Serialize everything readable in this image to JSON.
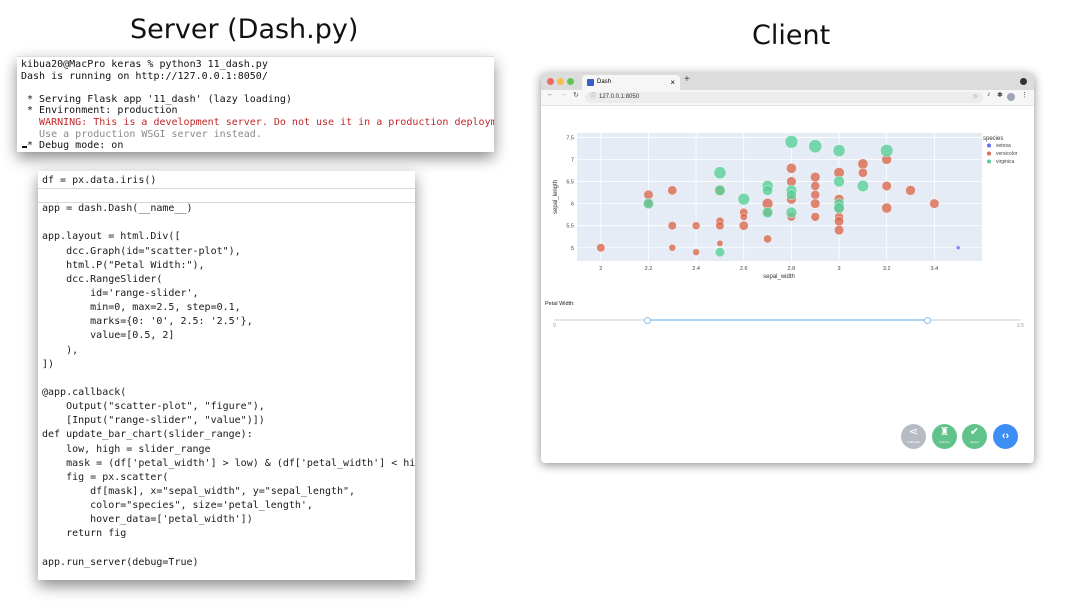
{
  "headings": {
    "server": "Server (Dash.py)",
    "client": "Client"
  },
  "terminal": {
    "lines": [
      {
        "text": "kibua20@MacPro keras % python3 11_dash.py",
        "kind": "normal"
      },
      {
        "text": "Dash is running on http://127.0.0.1:8050/",
        "kind": "normal"
      },
      {
        "text": "",
        "kind": "normal"
      },
      {
        "text": " * Serving Flask app '11_dash' (lazy loading)",
        "kind": "normal"
      },
      {
        "text": " * Environment: production",
        "kind": "normal"
      },
      {
        "text": "   WARNING: This is a development server. Do not use it in a production deployment.",
        "kind": "warn"
      },
      {
        "text": "   Use a production WSGI server instead.",
        "kind": "muted"
      },
      {
        "text": " * Debug mode: on",
        "kind": "normal"
      }
    ]
  },
  "code": {
    "lines": [
      "df = px.data.iris()",
      "",
      "app = dash.Dash(__name__)",
      "",
      "app.layout = html.Div([",
      "    dcc.Graph(id=\"scatter-plot\"),",
      "    html.P(\"Petal Width:\"),",
      "    dcc.RangeSlider(",
      "        id='range-slider',",
      "        min=0, max=2.5, step=0.1,",
      "        marks={0: '0', 2.5: '2.5'},",
      "        value=[0.5, 2]",
      "    ),",
      "])",
      "",
      "@app.callback(",
      "    Output(\"scatter-plot\", \"figure\"),",
      "    [Input(\"range-slider\", \"value\")])",
      "def update_bar_chart(slider_range):",
      "    low, high = slider_range",
      "    mask = (df['petal_width'] > low) & (df['petal_width'] < high)",
      "    fig = px.scatter(",
      "        df[mask], x=\"sepal_width\", y=\"sepal_length\",",
      "        color=\"species\", size='petal_length',",
      "        hover_data=['petal_width'])",
      "    return fig",
      "",
      "app.run_server(debug=True)"
    ]
  },
  "browser": {
    "tab_title": "Dash",
    "tab_close": "×",
    "new_tab": "+",
    "url": "127.0.0.1:8050",
    "slider_label": "Petal Width:",
    "slider_min_mark": "0",
    "slider_max_mark": "2.5",
    "slider_value": [
      0.5,
      2
    ],
    "slider_range": [
      0,
      2.5
    ],
    "fab_buttons": [
      {
        "name": "share",
        "glyph": "⋖",
        "label": "Callbacks",
        "color": "#b7bcc4"
      },
      {
        "name": "errors",
        "glyph": "♜",
        "label": "0 Errors",
        "color": "#62c28b"
      },
      {
        "name": "server",
        "glyph": "✔",
        "label": "Server",
        "color": "#62c28b"
      },
      {
        "name": "code",
        "glyph": "‹›",
        "label": "",
        "color": "#3d8ef5"
      }
    ]
  },
  "chart_data": {
    "type": "scatter",
    "xlabel": "sepal_width",
    "ylabel": "sepal_length",
    "xlim": [
      1.9,
      3.6
    ],
    "ylim": [
      4.7,
      7.6
    ],
    "xticks": [
      "2",
      "2.2",
      "2.4",
      "2.6",
      "2.8",
      "3",
      "3.2",
      "3.4"
    ],
    "yticks": [
      "5",
      "5.5",
      "6",
      "6.5",
      "7",
      "7.5"
    ],
    "legend_title": "species",
    "legend_position": "right",
    "series": [
      {
        "name": "setosa",
        "color": "#636efa",
        "points": [
          {
            "x": 3.5,
            "y": 5.0,
            "size": 1.6
          }
        ]
      },
      {
        "name": "versicolor",
        "color": "#d96c52",
        "points": [
          {
            "x": 2.0,
            "y": 5.0,
            "size": 4.0
          },
          {
            "x": 2.2,
            "y": 6.2,
            "size": 4.5
          },
          {
            "x": 2.2,
            "y": 6.0,
            "size": 4.0
          },
          {
            "x": 2.3,
            "y": 6.3,
            "size": 4.4
          },
          {
            "x": 2.3,
            "y": 5.5,
            "size": 4.0
          },
          {
            "x": 2.3,
            "y": 5.0,
            "size": 3.3
          },
          {
            "x": 2.4,
            "y": 5.5,
            "size": 3.8
          },
          {
            "x": 2.4,
            "y": 4.9,
            "size": 3.3
          },
          {
            "x": 2.5,
            "y": 5.6,
            "size": 3.9
          },
          {
            "x": 2.5,
            "y": 5.5,
            "size": 4.0
          },
          {
            "x": 2.5,
            "y": 5.1,
            "size": 3.0
          },
          {
            "x": 2.5,
            "y": 6.3,
            "size": 4.9
          },
          {
            "x": 2.6,
            "y": 5.8,
            "size": 4.0
          },
          {
            "x": 2.6,
            "y": 5.7,
            "size": 3.5
          },
          {
            "x": 2.6,
            "y": 5.5,
            "size": 4.4
          },
          {
            "x": 2.7,
            "y": 6.0,
            "size": 5.1
          },
          {
            "x": 2.7,
            "y": 5.8,
            "size": 4.1
          },
          {
            "x": 2.7,
            "y": 5.2,
            "size": 3.9
          },
          {
            "x": 2.8,
            "y": 6.8,
            "size": 4.8
          },
          {
            "x": 2.8,
            "y": 6.5,
            "size": 4.6
          },
          {
            "x": 2.8,
            "y": 6.1,
            "size": 4.7
          },
          {
            "x": 2.8,
            "y": 5.7,
            "size": 4.1
          },
          {
            "x": 2.9,
            "y": 6.6,
            "size": 4.6
          },
          {
            "x": 2.9,
            "y": 6.4,
            "size": 4.3
          },
          {
            "x": 2.9,
            "y": 6.2,
            "size": 4.3
          },
          {
            "x": 2.9,
            "y": 6.0,
            "size": 4.5
          },
          {
            "x": 2.9,
            "y": 5.7,
            "size": 4.2
          },
          {
            "x": 3.0,
            "y": 6.7,
            "size": 5.0
          },
          {
            "x": 3.0,
            "y": 6.1,
            "size": 4.6
          },
          {
            "x": 3.0,
            "y": 5.9,
            "size": 4.2
          },
          {
            "x": 3.0,
            "y": 5.7,
            "size": 4.2
          },
          {
            "x": 3.0,
            "y": 5.6,
            "size": 4.5
          },
          {
            "x": 3.0,
            "y": 5.4,
            "size": 4.5
          },
          {
            "x": 3.1,
            "y": 6.9,
            "size": 4.9
          },
          {
            "x": 3.1,
            "y": 6.7,
            "size": 4.4
          },
          {
            "x": 3.2,
            "y": 7.0,
            "size": 4.7
          },
          {
            "x": 3.2,
            "y": 6.4,
            "size": 4.5
          },
          {
            "x": 3.2,
            "y": 5.9,
            "size": 4.8
          },
          {
            "x": 3.3,
            "y": 6.3,
            "size": 4.7
          },
          {
            "x": 3.4,
            "y": 6.0,
            "size": 4.5
          }
        ]
      },
      {
        "name": "virginica",
        "color": "#5ccf9a",
        "points": [
          {
            "x": 2.2,
            "y": 6.0,
            "size": 5.0
          },
          {
            "x": 2.5,
            "y": 6.7,
            "size": 5.8
          },
          {
            "x": 2.5,
            "y": 6.3,
            "size": 5.0
          },
          {
            "x": 2.5,
            "y": 4.9,
            "size": 4.5
          },
          {
            "x": 2.6,
            "y": 6.1,
            "size": 5.6
          },
          {
            "x": 2.7,
            "y": 6.4,
            "size": 5.3
          },
          {
            "x": 2.7,
            "y": 6.3,
            "size": 4.9
          },
          {
            "x": 2.7,
            "y": 5.8,
            "size": 5.1
          },
          {
            "x": 2.8,
            "y": 7.4,
            "size": 6.1
          },
          {
            "x": 2.8,
            "y": 6.3,
            "size": 5.1
          },
          {
            "x": 2.8,
            "y": 6.2,
            "size": 4.8
          },
          {
            "x": 2.8,
            "y": 5.8,
            "size": 5.1
          },
          {
            "x": 2.9,
            "y": 7.3,
            "size": 6.3
          },
          {
            "x": 3.0,
            "y": 7.2,
            "size": 5.8
          },
          {
            "x": 3.0,
            "y": 6.5,
            "size": 5.2
          },
          {
            "x": 3.0,
            "y": 6.0,
            "size": 4.8
          },
          {
            "x": 3.0,
            "y": 5.9,
            "size": 5.1
          },
          {
            "x": 3.1,
            "y": 6.4,
            "size": 5.5
          },
          {
            "x": 3.2,
            "y": 7.2,
            "size": 6.0
          }
        ]
      }
    ]
  }
}
